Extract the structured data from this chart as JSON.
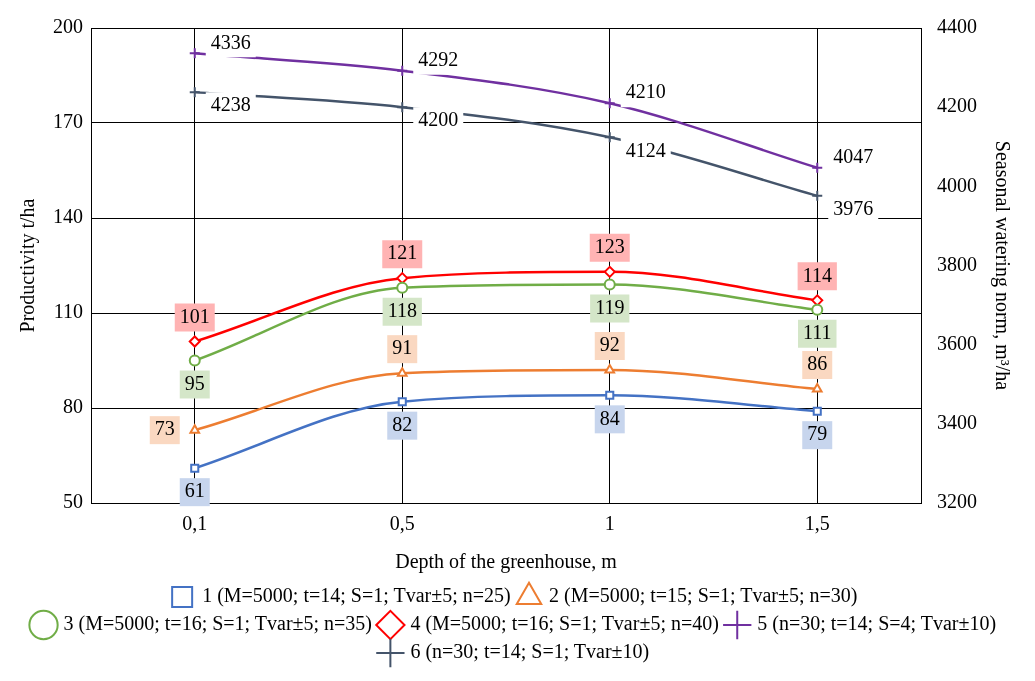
{
  "chart_data": {
    "type": "line",
    "xlabel": "Depth of the greenhouse, m",
    "ylabel": "Productivity t/ha",
    "y2label": "Seasonal watering norm, m³/ha",
    "categories": [
      "0,1",
      "0,5",
      "1",
      "1,5"
    ],
    "ylim": [
      50,
      200
    ],
    "yticks": [
      50,
      80,
      110,
      140,
      170,
      200
    ],
    "y2lim": [
      3200,
      4400
    ],
    "y2ticks": [
      3200,
      3400,
      3600,
      3800,
      4000,
      4200,
      4400
    ],
    "grid": true,
    "legend": "bottom",
    "data_labels": true,
    "line_style": "solid",
    "series": [
      {
        "name": "1 (M=5000; t=14; S=1; Tvar±5; n=25)",
        "color": "#4472c4",
        "marker": "square",
        "values": [
          61,
          82,
          84,
          79
        ]
      },
      {
        "name": "2 (M=5000; t=15; S=1; Tvar±5; n=30)",
        "color": "#ed7d31",
        "marker": "triangle",
        "values": [
          73,
          91,
          92,
          86
        ]
      },
      {
        "name": "3 (M=5000; t=16; S=1; Tvar±5; n=35)",
        "color": "#70ad47",
        "marker": "circle",
        "values": [
          95,
          118,
          119,
          111
        ]
      },
      {
        "name": "4 (M=5000; t=16; S=1; Tvar±5; n=40)",
        "color": "#ff0000",
        "marker": "diamond",
        "values": [
          101,
          121,
          123,
          114
        ]
      },
      {
        "name": "5 (n=30; t=14; S=4; Tvar±10)",
        "color": "#7030a0",
        "marker": "cross",
        "axis": "y2",
        "values": [
          4336,
          4292,
          4210,
          4047
        ]
      },
      {
        "name": "6 (n=30; t=14; S=1; Tvar±10)",
        "color": "#44546a",
        "marker": "cross",
        "axis": "y2",
        "values": [
          4238,
          4200,
          4124,
          3976
        ]
      }
    ]
  }
}
